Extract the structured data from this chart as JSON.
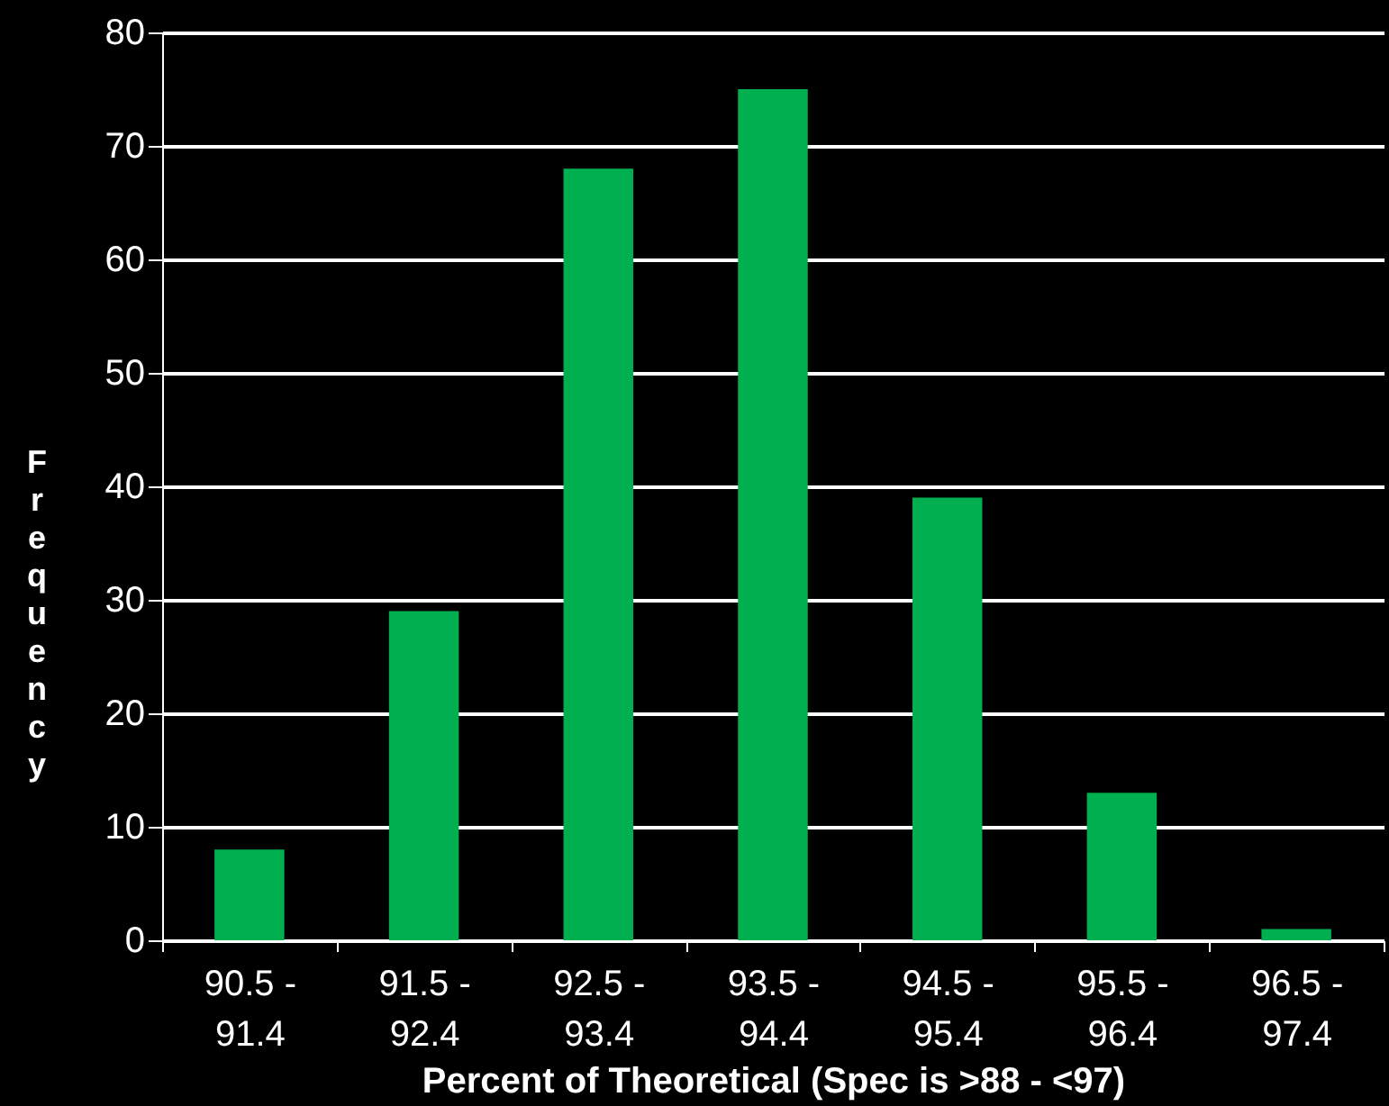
{
  "chart_data": {
    "type": "bar",
    "categories": [
      "90.5 -\n91.4",
      "91.5 -\n92.4",
      "92.5 -\n93.4",
      "93.5 -\n94.4",
      "94.5 -\n95.4",
      "95.5 -\n96.4",
      "96.5 -\n97.4"
    ],
    "values": [
      8,
      29,
      68,
      75,
      39,
      13,
      1
    ],
    "color": "#00b050",
    "xlabel": "Percent of Theoretical (Spec is >88 - <97)",
    "ylabel": "Frequency",
    "ylim": [
      0,
      80
    ],
    "yticks": [
      0,
      10,
      20,
      30,
      40,
      50,
      60,
      70,
      80
    ],
    "grid": "y"
  }
}
